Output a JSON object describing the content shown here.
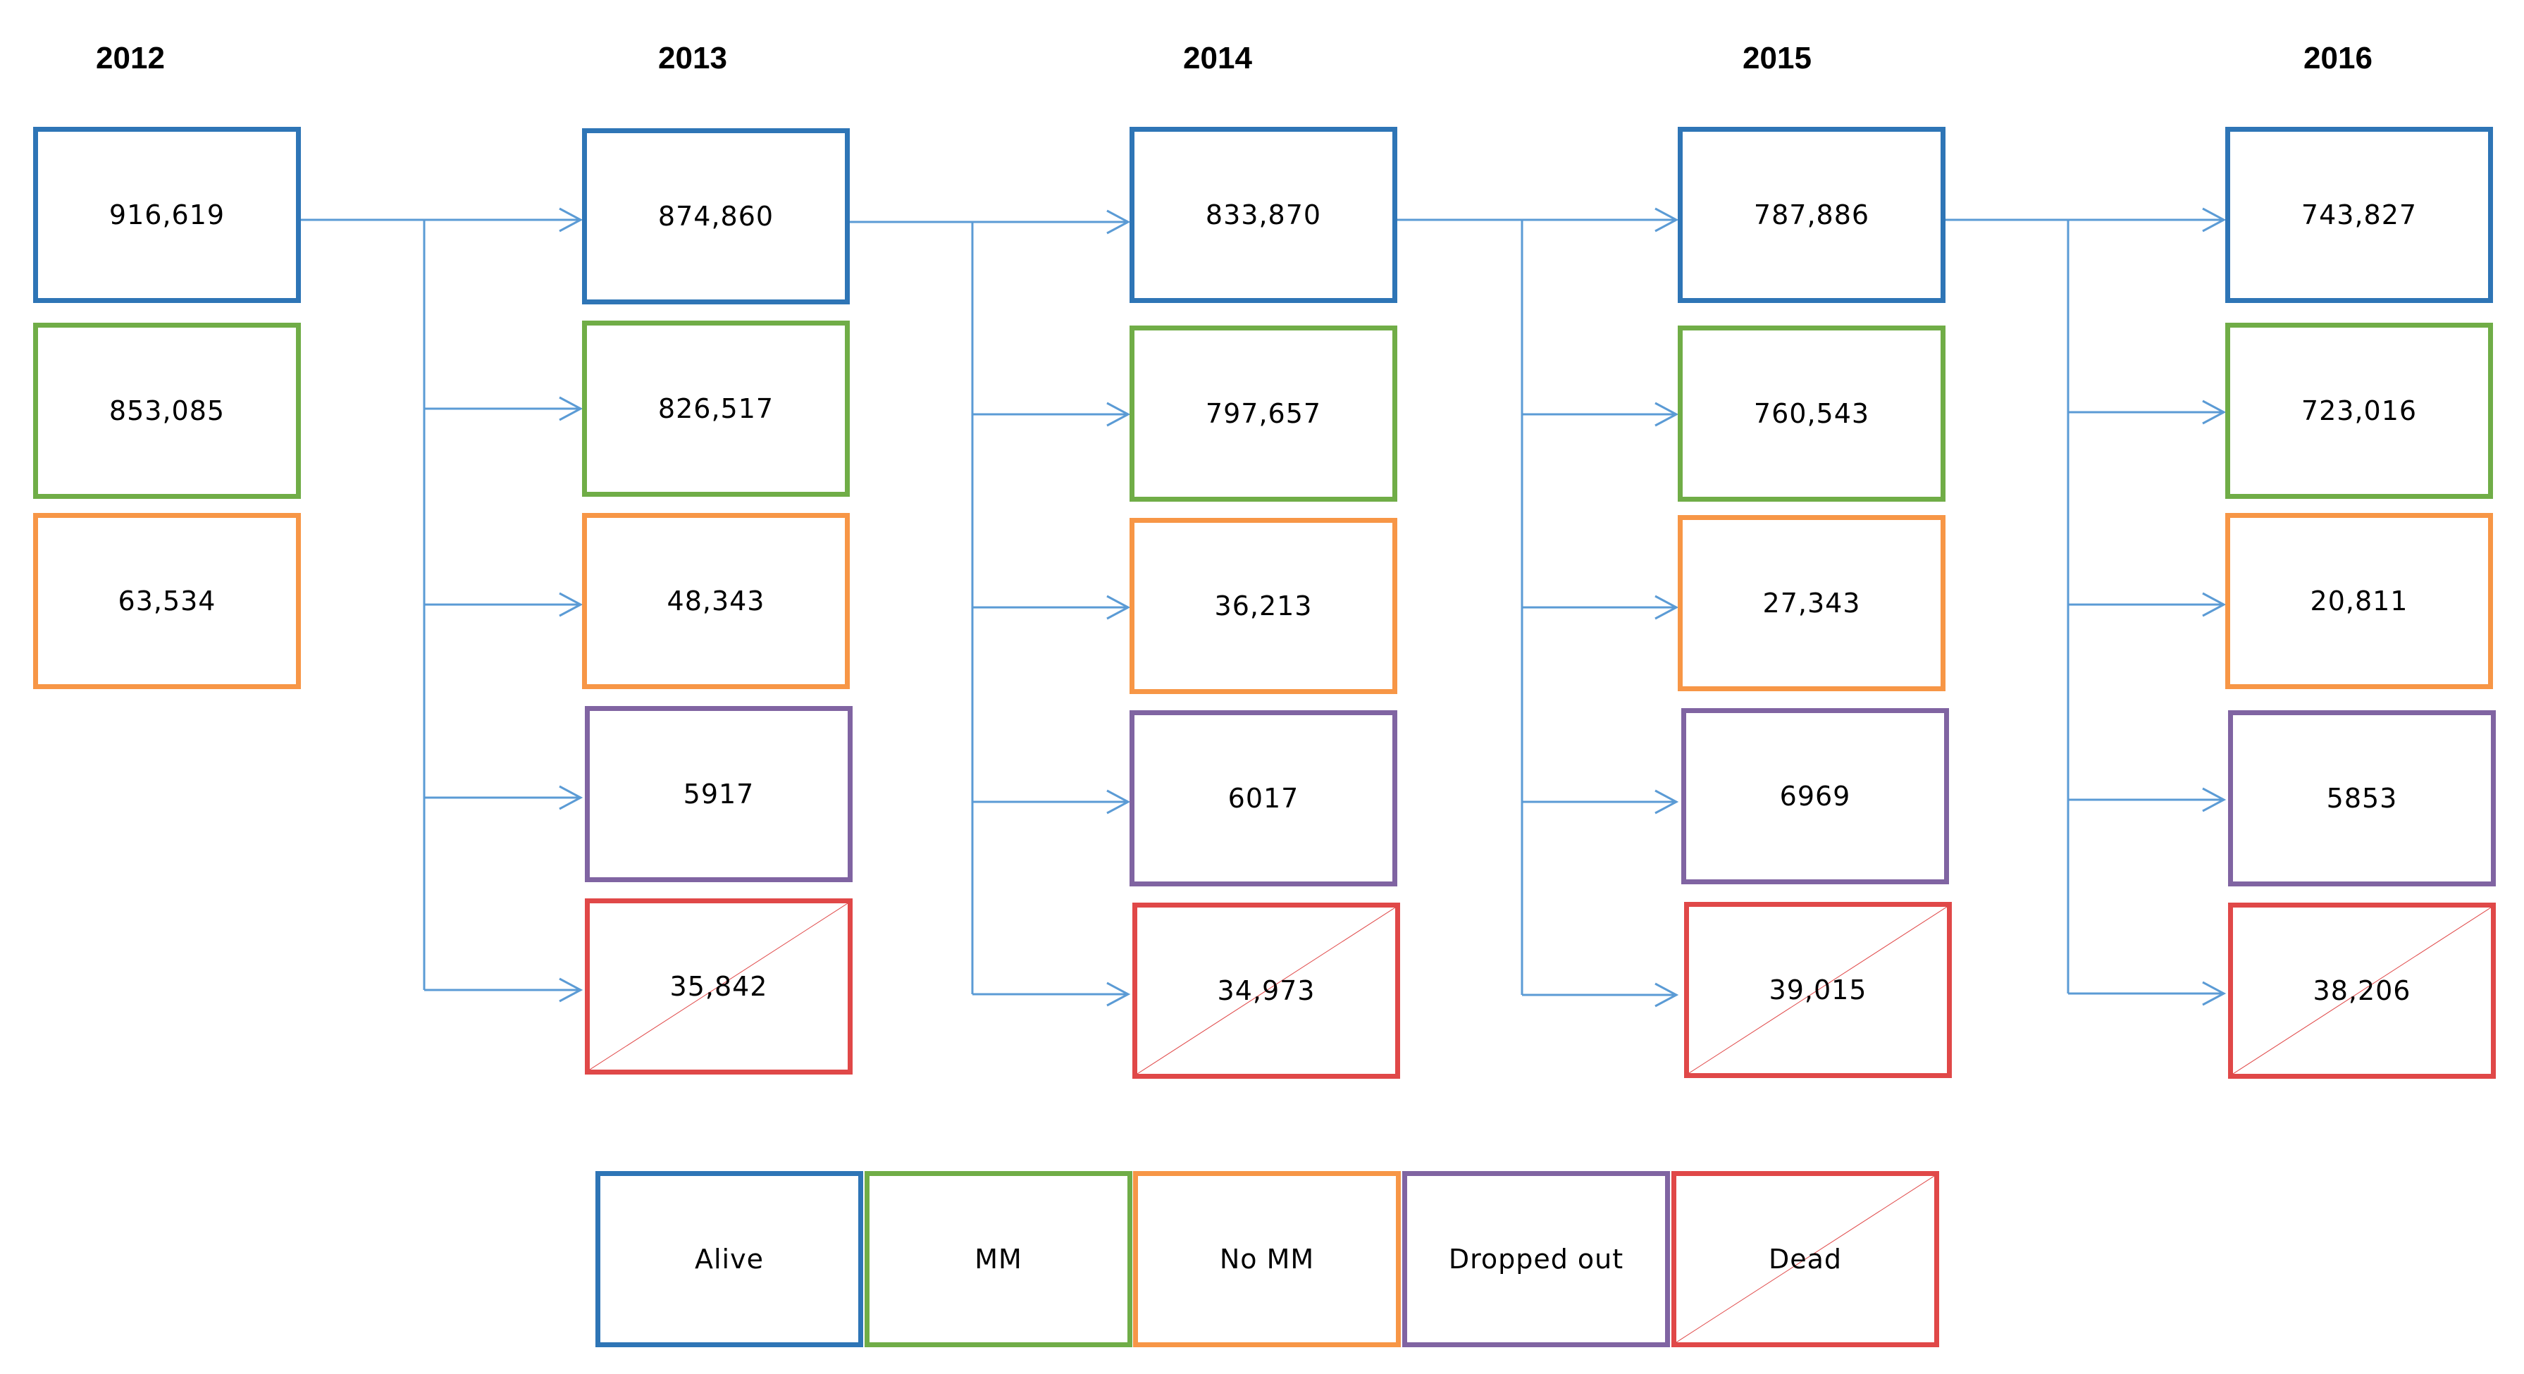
{
  "colors": {
    "alive": "#2e75b6",
    "mm": "#70ad47",
    "no_mm": "#f79646",
    "dropped_out": "#8064a2",
    "dead": "#e04848",
    "connector": "#5b9bd5"
  },
  "years": [
    {
      "year": "2012",
      "alive": "916,619",
      "mm": "853,085",
      "no_mm": "63,534"
    },
    {
      "year": "2013",
      "alive": "874,860",
      "mm": "826,517",
      "no_mm": "48,343",
      "dropped_out": "5917",
      "dead": "35,842"
    },
    {
      "year": "2014",
      "alive": "833,870",
      "mm": "797,657",
      "no_mm": "36,213",
      "dropped_out": "6017",
      "dead": "34,973"
    },
    {
      "year": "2015",
      "alive": "787,886",
      "mm": "760,543",
      "no_mm": "27,343",
      "dropped_out": "6969",
      "dead": "39,015"
    },
    {
      "year": "2016",
      "alive": "743,827",
      "mm": "723,016",
      "no_mm": "20,811",
      "dropped_out": "5853",
      "dead": "38,206"
    }
  ],
  "legend": {
    "alive": "Alive",
    "mm": "MM",
    "no_mm": "No MM",
    "dropped_out": "Dropped out",
    "dead": "Dead"
  }
}
